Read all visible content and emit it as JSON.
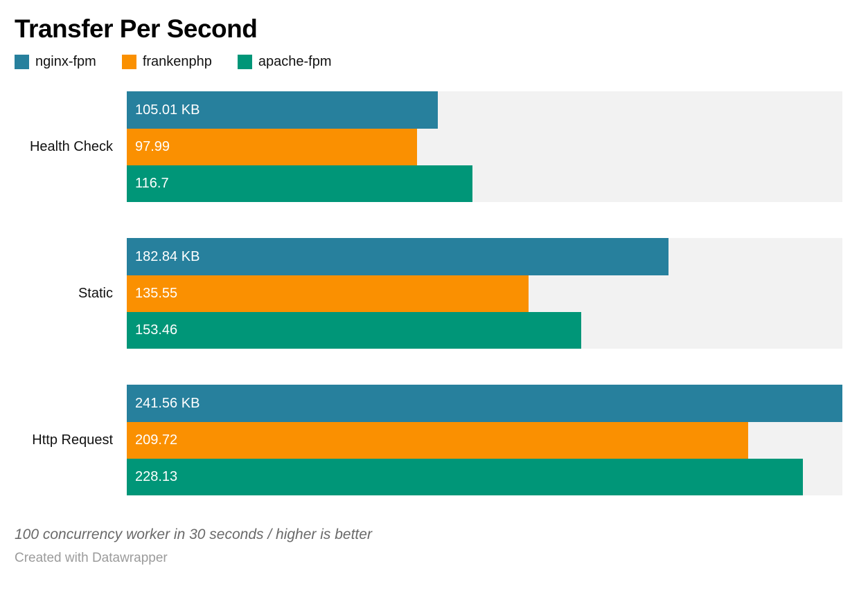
{
  "chart_data": {
    "type": "bar",
    "orientation": "horizontal",
    "title": "Transfer Per Second",
    "unit": "KB",
    "categories": [
      "Health Check",
      "Static",
      "Http Request"
    ],
    "series": [
      {
        "name": "nginx-fpm",
        "color": "#27809d",
        "values": [
          105.01,
          182.84,
          241.56
        ],
        "labels": [
          "105.01 KB",
          "182.84 KB",
          "241.56 KB"
        ]
      },
      {
        "name": "frankenphp",
        "color": "#fa9001",
        "values": [
          97.99,
          135.55,
          209.72
        ],
        "labels": [
          "97.99",
          "135.55",
          "209.72"
        ]
      },
      {
        "name": "apache-fpm",
        "color": "#009678",
        "values": [
          116.7,
          153.46,
          228.13
        ],
        "labels": [
          "116.7",
          "153.46",
          "228.13"
        ]
      }
    ],
    "xlim": [
      0,
      241.56
    ],
    "track_color": "#f2f2f2",
    "grid": false,
    "legend_position": "top",
    "note": "100 concurrency worker in 30 seconds / higher is better",
    "byline": "Created with Datawrapper"
  }
}
